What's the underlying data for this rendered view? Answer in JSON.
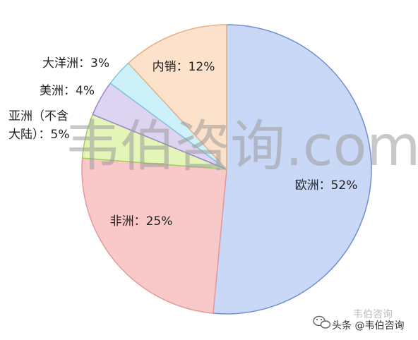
{
  "chart_data": {
    "type": "pie",
    "slices": [
      {
        "label": "欧洲：52%",
        "value": 52,
        "color": "#c9d8f7",
        "stroke": "#6f8fd0",
        "label_lines": [
          "欧洲：52%"
        ]
      },
      {
        "label": "非洲：25%",
        "value": 25,
        "color": "#f9c8c8",
        "stroke": "#e49a9a",
        "label_lines": [
          "非洲：25%"
        ]
      },
      {
        "label": "亚洲（不含大陆）：5%",
        "value": 5,
        "color": "#e4f5b8",
        "stroke": "#a6cf60",
        "label_lines": [
          "亚洲（不含",
          "大陆）：5%"
        ]
      },
      {
        "label": "美洲：4%",
        "value": 4,
        "color": "#ddd4f2",
        "stroke": "#9987c8",
        "label_lines": [
          "美洲：4%"
        ]
      },
      {
        "label": "大洋洲：3%",
        "value": 3,
        "color": "#cdf1f8",
        "stroke": "#7fc8db",
        "label_lines": [
          "大洋洲：3%"
        ]
      },
      {
        "label": "内销：12%",
        "value": 12,
        "color": "#fde2cb",
        "stroke": "#e6b086",
        "label_lines": [
          "内销：12%"
        ]
      }
    ]
  },
  "watermark": {
    "text": "韦伯咨询.com"
  },
  "credit": {
    "text": "头条 @韦伯咨询",
    "ghost_text": "韦伯咨询",
    "icon": "wechat-icon"
  }
}
